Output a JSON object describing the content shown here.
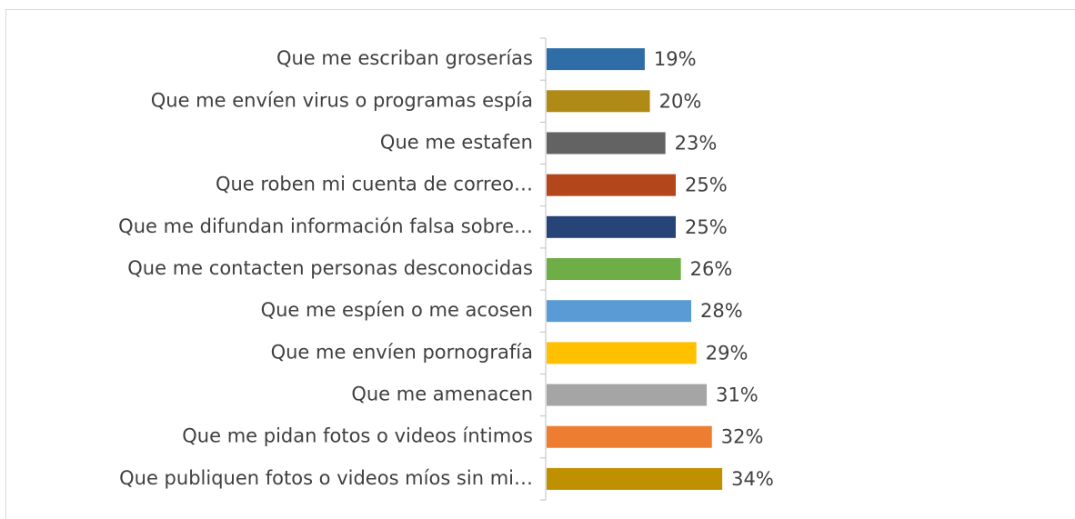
{
  "chart_data": {
    "type": "bar",
    "orientation": "horizontal",
    "categories": [
      "Que me escriban groserías",
      "Que me envíen virus o programas espía",
      "Que me estafen",
      "Que roben mi cuenta de correo…",
      "Que me difundan información falsa sobre…",
      "Que me contacten personas desconocidas",
      "Que me espíen o me acosen",
      "Que me envíen pornografía",
      "Que me amenacen",
      "Que me pidan fotos o videos íntimos",
      "Que publiquen fotos o videos míos sin mi…"
    ],
    "values": [
      19,
      20,
      23,
      25,
      25,
      26,
      28,
      29,
      31,
      32,
      34
    ],
    "value_labels": [
      "19%",
      "20%",
      "23%",
      "25%",
      "25%",
      "26%",
      "28%",
      "29%",
      "31%",
      "32%",
      "34%"
    ],
    "colors": [
      "#2e6da6",
      "#b08a16",
      "#636363",
      "#b4461c",
      "#264478",
      "#6fae47",
      "#5b9bd5",
      "#ffc000",
      "#a5a5a5",
      "#ed7d31",
      "#bf9000"
    ]
  }
}
